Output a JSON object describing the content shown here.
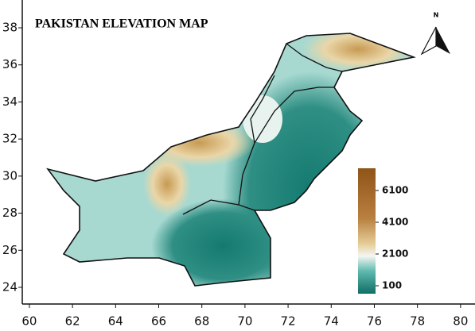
{
  "title": "PAKISTAN ELEVATION MAP",
  "north_label": "N",
  "axes": {
    "xlim": [
      59.67,
      80.67
    ],
    "ylim": [
      23.1,
      39.5
    ],
    "xticks": [
      60,
      62,
      64,
      66,
      68,
      70,
      72,
      74,
      76,
      78,
      80
    ],
    "yticks": [
      24,
      26,
      28,
      30,
      32,
      34,
      36,
      38
    ]
  },
  "colorbar": {
    "lim": [
      -400,
      7500
    ],
    "ticks": [
      100,
      2100,
      4100,
      6100
    ]
  }
}
